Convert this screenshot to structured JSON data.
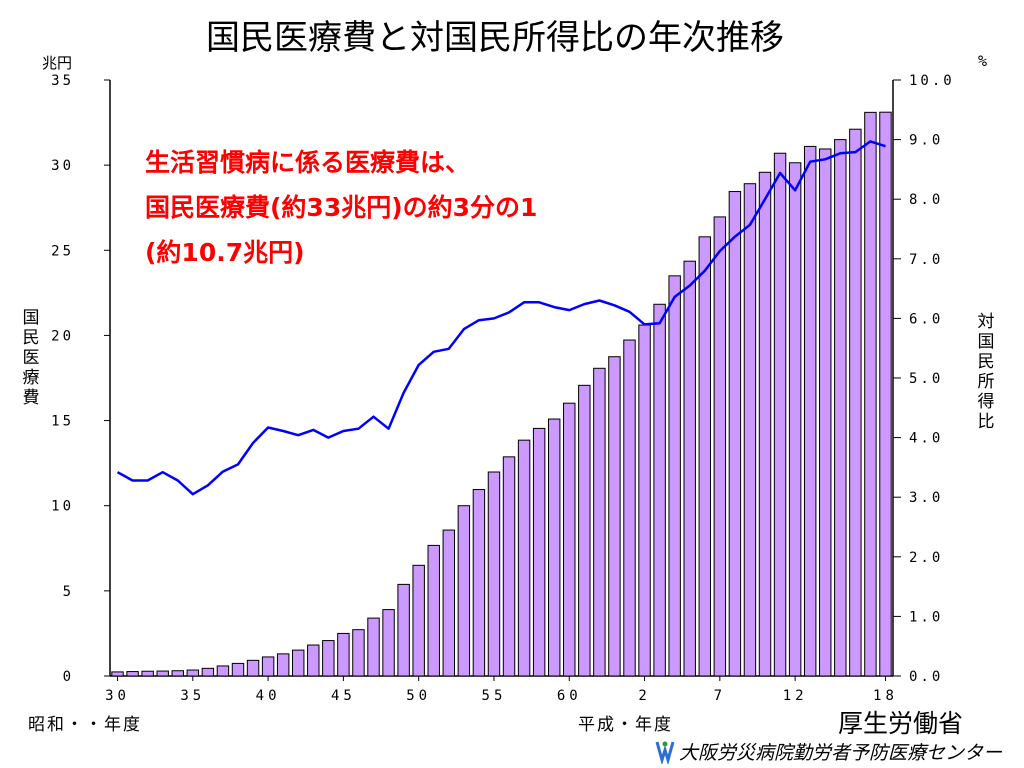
{
  "slide": {
    "title": "国民医療費と対国民所得比の年次推移",
    "left_unit": "兆円",
    "right_unit": "%",
    "left_axis_label_chars": [
      "国",
      "民",
      "医",
      "療",
      "費"
    ],
    "right_axis_label_chars": [
      "対",
      "国",
      "民",
      "所",
      "得",
      "比"
    ],
    "annotation_lines": [
      "生活習慣病に係る医療費は、",
      "国民医療費(約33兆円)の約3分の1",
      "(約10.7兆円)"
    ],
    "era_showa": "昭和・・年度",
    "era_heisei": "平成・年度",
    "ministry": "厚生労働省",
    "footer": "大阪労災病院勤労者予防医療センター"
  },
  "chart_data": {
    "type": "bar",
    "x": [
      "30",
      "31",
      "32",
      "33",
      "34",
      "35",
      "36",
      "37",
      "38",
      "39",
      "40",
      "41",
      "42",
      "43",
      "44",
      "45",
      "46",
      "47",
      "48",
      "49",
      "50",
      "51",
      "52",
      "53",
      "54",
      "55",
      "56",
      "57",
      "58",
      "59",
      "60",
      "61",
      "62",
      "63",
      "1",
      "2",
      "3",
      "4",
      "5",
      "6",
      "7",
      "8",
      "9",
      "10",
      "11",
      "12",
      "13",
      "14",
      "15",
      "16",
      "17",
      "18"
    ],
    "x_tick_labels": [
      "30",
      "35",
      "40",
      "45",
      "50",
      "55",
      "60",
      "2",
      "7",
      "12",
      "18"
    ],
    "series": [
      {
        "kind": "bar",
        "axis": "left",
        "values": [
          0.24,
          0.26,
          0.28,
          0.29,
          0.31,
          0.35,
          0.45,
          0.59,
          0.74,
          0.92,
          1.12,
          1.3,
          1.52,
          1.82,
          2.08,
          2.5,
          2.72,
          3.4,
          3.9,
          5.38,
          6.5,
          7.67,
          8.57,
          10.0,
          10.95,
          11.98,
          12.87,
          13.85,
          14.54,
          15.09,
          16.02,
          17.07,
          18.07,
          18.75,
          19.73,
          20.61,
          21.83,
          23.5,
          24.36,
          25.79,
          26.96,
          28.45,
          28.91,
          29.58,
          30.7,
          30.14,
          31.1,
          30.95,
          31.5,
          32.11,
          33.1,
          33.11
        ],
        "color": "#cc99ff"
      },
      {
        "kind": "line",
        "axis": "right",
        "values": [
          3.42,
          3.28,
          3.28,
          3.42,
          3.28,
          3.05,
          3.2,
          3.43,
          3.55,
          3.91,
          4.17,
          4.11,
          4.04,
          4.13,
          4.0,
          4.11,
          4.15,
          4.35,
          4.15,
          4.75,
          5.22,
          5.44,
          5.49,
          5.82,
          5.97,
          6.0,
          6.1,
          6.27,
          6.27,
          6.19,
          6.14,
          6.24,
          6.3,
          6.22,
          6.11,
          5.9,
          5.92,
          6.36,
          6.55,
          6.8,
          7.13,
          7.37,
          7.57,
          8.0,
          8.44,
          8.15,
          8.63,
          8.67,
          8.77,
          8.79,
          8.97,
          8.89
        ],
        "color": "#0000ff"
      }
    ],
    "y_left": {
      "lim": [
        0,
        35
      ],
      "ticks": [
        "0",
        "5",
        "10",
        "15",
        "20",
        "25",
        "30",
        "35"
      ]
    },
    "y_right": {
      "lim": [
        0,
        10
      ],
      "ticks": [
        "0.0",
        "1.0",
        "2.0",
        "3.0",
        "4.0",
        "5.0",
        "6.0",
        "7.0",
        "8.0",
        "9.0",
        "10.0"
      ]
    },
    "grid": false
  }
}
